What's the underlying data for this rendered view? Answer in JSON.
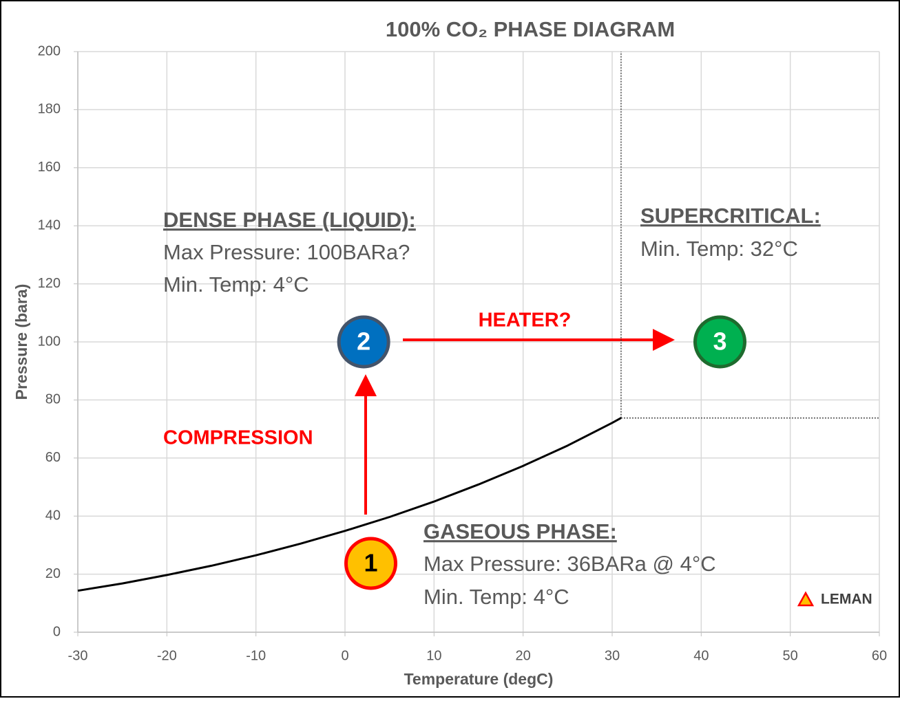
{
  "chart_data": {
    "type": "line",
    "title": "100% CO₂ PHASE DIAGRAM",
    "x_label": "Temperature (degC)",
    "y_label": "Pressure (bara)",
    "xlim": [
      -30,
      60
    ],
    "ylim": [
      0,
      200
    ],
    "xticks": [
      -30,
      -20,
      -10,
      0,
      10,
      20,
      30,
      40,
      50,
      60
    ],
    "yticks": [
      0,
      20,
      40,
      60,
      80,
      100,
      120,
      140,
      160,
      180,
      200
    ],
    "grid": true,
    "series": [
      {
        "color": "#000000",
        "x": [
          -30,
          -25,
          -20,
          -15,
          -10,
          -5,
          0,
          5,
          10,
          15,
          20,
          25,
          30,
          31
        ],
        "values": [
          14.3,
          16.8,
          19.7,
          22.9,
          26.5,
          30.5,
          34.9,
          39.7,
          45.0,
          50.9,
          57.3,
          64.3,
          72.1,
          73.8
        ]
      }
    ],
    "critical_point": {
      "x": 31,
      "y": 73.8
    },
    "points": [
      {
        "label": "1",
        "x": 2.9,
        "y": 23.7,
        "color": "#ffc000",
        "edge": "#ff0000",
        "text_color": "#000000"
      },
      {
        "label": "2",
        "x": 2.1,
        "y": 100,
        "color": "#0070c0",
        "edge": "#44546a",
        "text_color": "#ffffff"
      },
      {
        "label": "3",
        "x": 42.1,
        "y": 100,
        "color": "#00b050",
        "edge": "#1e6b2e",
        "text_color": "#ffffff"
      }
    ],
    "annotations": {
      "dense": [
        "DENSE PHASE (LIQUID):",
        "Max Pressure: 100BARa?",
        "Min. Temp: 4°C"
      ],
      "supercritical": [
        "SUPERCRITICAL:",
        "Min. Temp: 32°C"
      ],
      "gaseous": [
        "GASEOUS PHASE:",
        "Max Pressure: 36BARa @ 4°C",
        "Min. Temp: 4°C"
      ],
      "heater": "HEATER?",
      "compression": "COMPRESSION",
      "logo": "LEMAN"
    }
  }
}
